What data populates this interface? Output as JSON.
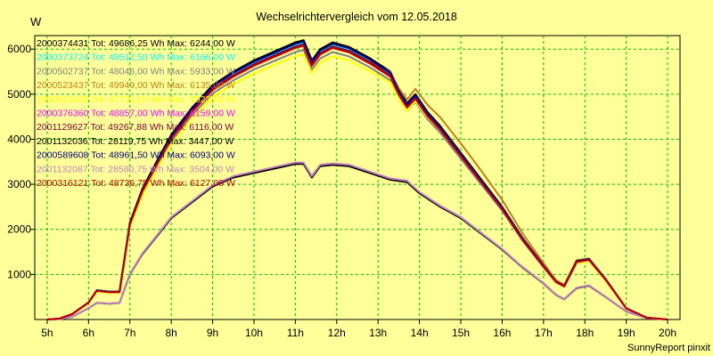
{
  "chart_data": {
    "type": "line",
    "title": "Wechselrichtervergleich vom 12.05.2018",
    "ylabel": "W",
    "xlabel": "",
    "footer": "SunnyReport pinxit",
    "x_ticks": [
      "5h",
      "6h",
      "7h",
      "8h",
      "9h",
      "10h",
      "11h",
      "12h",
      "13h",
      "14h",
      "15h",
      "16h",
      "17h",
      "18h",
      "19h",
      "20h"
    ],
    "y_ticks": [
      1000,
      2000,
      3000,
      4000,
      5000,
      6000
    ],
    "xlim": [
      4.7,
      20.3
    ],
    "ylim": [
      0,
      6300
    ],
    "grid": true,
    "legend_position": "top-left",
    "series": [
      {
        "label": "2000374431 Tot: 49686,25 Wh Max: 6244,00 W",
        "color": "#000000",
        "profile": "A",
        "scale": 1.0,
        "hump": 0
      },
      {
        "label": "2000373724 Tot: 49512,50 Wh Max: 6166,00 W",
        "color": "#00ffff",
        "profile": "A",
        "scale": 0.99,
        "hump": 0
      },
      {
        "label": "2000502737 Tot: 48046,00 Wh Max: 5933,00 W",
        "color": "#808080",
        "profile": "A",
        "scale": 0.965,
        "hump": 0
      },
      {
        "label": "2000523437 Tot: 49949,00 Wh Max: 6135,00 W",
        "color": "#c08020",
        "profile": "A",
        "scale": 0.985,
        "hump": 0.08
      },
      {
        "label": "2000523435 Tot: 47731,50 Wh Max: 5922,00 W",
        "color": "#ffff00",
        "profile": "A",
        "scale": 0.95,
        "hump": 0.04
      },
      {
        "label": "2000376360 Tot: 48857,00 Wh Max: 6159,00 W",
        "color": "#ff00ff",
        "profile": "A",
        "scale": 0.98,
        "hump": 0
      },
      {
        "label": "2001129627 Tot: 49267,88 Wh Max: 6116,00 W",
        "color": "#800040",
        "profile": "A",
        "scale": 0.985,
        "hump": 0
      },
      {
        "label": "2001132036 Tot: 28119,75 Wh Max: 3447,00 W",
        "color": "#000000",
        "profile": "B",
        "scale": 1.0,
        "hump": 0
      },
      {
        "label": "2000589608 Tot: 48961,50 Wh Max: 6093,00 W",
        "color": "#000080",
        "profile": "A",
        "scale": 0.995,
        "hump": 0
      },
      {
        "label": "2001132087 Tot: 28580,75 Wh Max: 3504,00 W",
        "color": "#c080c0",
        "profile": "B",
        "scale": 1.01,
        "hump": 0
      },
      {
        "label": "2000316121 Tot: 48736,75 Wh Max: 6127,00 W",
        "color": "#c00000",
        "profile": "A",
        "scale": 0.98,
        "hump": 0
      }
    ],
    "profiles": {
      "A": [
        [
          5.0,
          0
        ],
        [
          5.3,
          20
        ],
        [
          5.6,
          120
        ],
        [
          6.0,
          380
        ],
        [
          6.2,
          650
        ],
        [
          6.5,
          620
        ],
        [
          6.75,
          620
        ],
        [
          7.0,
          2150
        ],
        [
          7.3,
          2900
        ],
        [
          7.7,
          3600
        ],
        [
          8.0,
          4100
        ],
        [
          8.5,
          4700
        ],
        [
          9.0,
          5200
        ],
        [
          9.5,
          5500
        ],
        [
          10.0,
          5750
        ],
        [
          10.5,
          5950
        ],
        [
          11.0,
          6150
        ],
        [
          11.2,
          6200
        ],
        [
          11.4,
          5750
        ],
        [
          11.6,
          6000
        ],
        [
          11.9,
          6150
        ],
        [
          12.3,
          6050
        ],
        [
          12.8,
          5800
        ],
        [
          13.3,
          5500
        ],
        [
          13.5,
          5100
        ],
        [
          13.7,
          4800
        ],
        [
          13.9,
          5000
        ],
        [
          14.2,
          4600
        ],
        [
          14.5,
          4300
        ],
        [
          15.0,
          3700
        ],
        [
          15.5,
          3100
        ],
        [
          16.0,
          2500
        ],
        [
          16.5,
          1800
        ],
        [
          17.0,
          1200
        ],
        [
          17.3,
          850
        ],
        [
          17.5,
          750
        ],
        [
          17.8,
          1300
        ],
        [
          18.1,
          1350
        ],
        [
          18.5,
          900
        ],
        [
          19.0,
          250
        ],
        [
          19.5,
          40
        ],
        [
          20.0,
          0
        ]
      ],
      "B": [
        [
          5.0,
          0
        ],
        [
          5.3,
          10
        ],
        [
          5.6,
          60
        ],
        [
          6.0,
          250
        ],
        [
          6.2,
          370
        ],
        [
          6.5,
          350
        ],
        [
          6.75,
          370
        ],
        [
          7.0,
          1000
        ],
        [
          7.3,
          1450
        ],
        [
          7.7,
          1900
        ],
        [
          8.0,
          2250
        ],
        [
          8.5,
          2600
        ],
        [
          9.0,
          2950
        ],
        [
          9.5,
          3150
        ],
        [
          10.0,
          3250
        ],
        [
          10.5,
          3350
        ],
        [
          11.0,
          3450
        ],
        [
          11.2,
          3450
        ],
        [
          11.4,
          3150
        ],
        [
          11.6,
          3400
        ],
        [
          11.9,
          3430
        ],
        [
          12.3,
          3400
        ],
        [
          12.8,
          3250
        ],
        [
          13.3,
          3100
        ],
        [
          13.7,
          3050
        ],
        [
          14.0,
          2800
        ],
        [
          14.5,
          2500
        ],
        [
          15.0,
          2250
        ],
        [
          15.5,
          1900
        ],
        [
          16.0,
          1550
        ],
        [
          16.5,
          1150
        ],
        [
          17.0,
          800
        ],
        [
          17.3,
          550
        ],
        [
          17.5,
          450
        ],
        [
          17.8,
          700
        ],
        [
          18.1,
          750
        ],
        [
          18.5,
          500
        ],
        [
          19.0,
          180
        ],
        [
          19.5,
          30
        ],
        [
          20.0,
          0
        ]
      ]
    }
  }
}
